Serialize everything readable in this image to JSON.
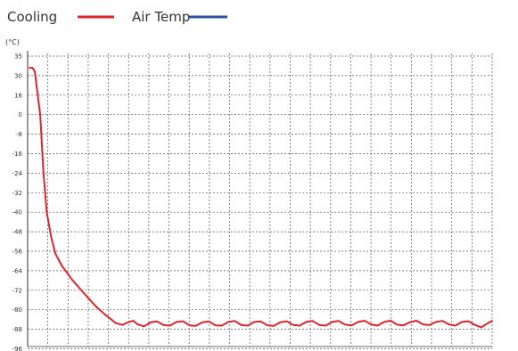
{
  "chart_data": {
    "type": "line",
    "unit_label": "(°C)",
    "y_ticks": [
      35,
      30,
      16,
      0,
      -8,
      -16,
      -24,
      -32,
      -40,
      -48,
      -56,
      -64,
      -72,
      -80,
      -88,
      -96
    ],
    "x_gridlines": 23,
    "grid": true,
    "legend_position": "top-left",
    "series": [
      {
        "name": "Cooling",
        "color": "#d9262f",
        "points": [
          [
            0,
            32
          ],
          [
            1.5,
            32
          ],
          [
            2.5,
            31
          ],
          [
            3.5,
            20
          ],
          [
            5,
            0
          ],
          [
            6.5,
            -24
          ],
          [
            8,
            -40
          ],
          [
            10,
            -50
          ],
          [
            12,
            -57
          ],
          [
            15,
            -62
          ],
          [
            20,
            -68
          ],
          [
            25,
            -73
          ],
          [
            30,
            -78
          ],
          [
            35,
            -82
          ],
          [
            40,
            -85.5
          ],
          [
            43,
            -86.2
          ],
          [
            46,
            -85
          ],
          [
            48,
            -84.5
          ],
          [
            50,
            -86
          ],
          [
            53,
            -86.8
          ],
          [
            56,
            -85.2
          ],
          [
            59,
            -84.8
          ],
          [
            62,
            -86.3
          ],
          [
            65,
            -86.5
          ],
          [
            68,
            -85
          ],
          [
            71,
            -84.7
          ],
          [
            74,
            -86.4
          ],
          [
            77,
            -86.6
          ],
          [
            80,
            -85.1
          ],
          [
            83,
            -84.8
          ],
          [
            86,
            -86.4
          ],
          [
            89,
            -86.5
          ],
          [
            92,
            -85
          ],
          [
            95,
            -84.6
          ],
          [
            98,
            -86.3
          ],
          [
            101,
            -86.5
          ],
          [
            104,
            -85
          ],
          [
            107,
            -84.8
          ],
          [
            110,
            -86.4
          ],
          [
            113,
            -86.6
          ],
          [
            116,
            -85.1
          ],
          [
            119,
            -84.7
          ],
          [
            122,
            -86.2
          ],
          [
            125,
            -86.5
          ],
          [
            128,
            -85
          ],
          [
            131,
            -84.6
          ],
          [
            134,
            -86.2
          ],
          [
            137,
            -86.5
          ],
          [
            140,
            -85
          ],
          [
            143,
            -84.6
          ],
          [
            146,
            -86.1
          ],
          [
            149,
            -86.4
          ],
          [
            152,
            -85
          ],
          [
            155,
            -84.5
          ],
          [
            158,
            -86
          ],
          [
            161,
            -86.5
          ],
          [
            164,
            -85
          ],
          [
            167,
            -84.5
          ],
          [
            170,
            -86.1
          ],
          [
            173,
            -86.4
          ],
          [
            176,
            -85.1
          ],
          [
            179,
            -84.5
          ],
          [
            182,
            -86
          ],
          [
            185,
            -86.3
          ],
          [
            188,
            -85
          ],
          [
            191,
            -84.6
          ],
          [
            194,
            -86
          ],
          [
            197,
            -86.5
          ],
          [
            200,
            -85
          ],
          [
            203,
            -84.7
          ],
          [
            206,
            -86.2
          ],
          [
            209,
            -87.2
          ],
          [
            212,
            -85.5
          ],
          [
            214,
            -84.6
          ]
        ]
      },
      {
        "name": "Air Temp",
        "color": "#2e4f9c",
        "points": []
      }
    ]
  }
}
